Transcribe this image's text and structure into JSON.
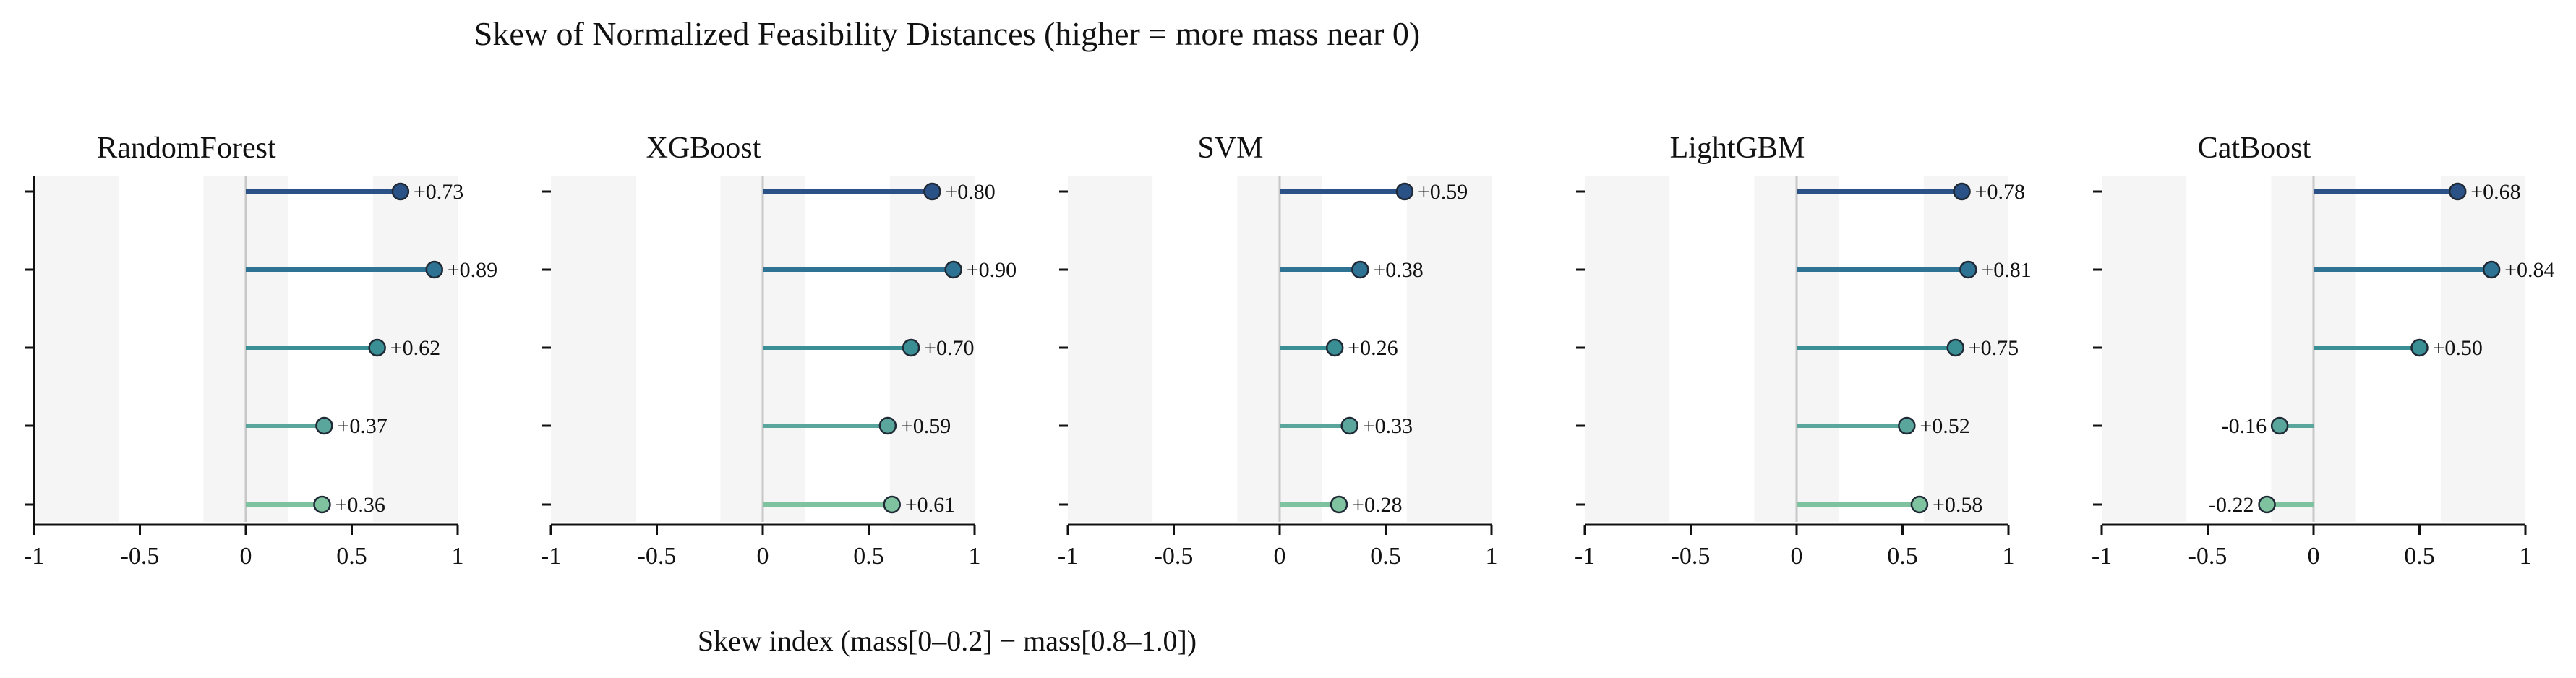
{
  "figure": {
    "title": "Skew of Normalized Feasibility Distances (higher = more mass near 0)",
    "xlabel": "Skew index  (mass[0–0.2] − mass[0.8–1.0])"
  },
  "chart_data": [
    {
      "type": "lollipop",
      "title": "RandomForest",
      "xlim": [
        -1,
        1
      ],
      "xticks": [
        "-1",
        "-0.5",
        "0",
        "0.5",
        "1"
      ],
      "values": [
        0.73,
        0.89,
        0.62,
        0.37,
        0.36
      ],
      "labels": [
        "+0.73",
        "+0.89",
        "+0.62",
        "+0.37",
        "+0.36"
      ]
    },
    {
      "type": "lollipop",
      "title": "XGBoost",
      "xlim": [
        -1,
        1
      ],
      "xticks": [
        "-1",
        "-0.5",
        "0",
        "0.5",
        "1"
      ],
      "values": [
        0.8,
        0.9,
        0.7,
        0.59,
        0.61
      ],
      "labels": [
        "+0.80",
        "+0.90",
        "+0.70",
        "+0.59",
        "+0.61"
      ]
    },
    {
      "type": "lollipop",
      "title": "SVM",
      "xlim": [
        -1,
        1
      ],
      "xticks": [
        "-1",
        "-0.5",
        "0",
        "0.5",
        "1"
      ],
      "values": [
        0.59,
        0.38,
        0.26,
        0.33,
        0.28
      ],
      "labels": [
        "+0.59",
        "+0.38",
        "+0.26",
        "+0.33",
        "+0.28"
      ]
    },
    {
      "type": "lollipop",
      "title": "LightGBM",
      "xlim": [
        -1,
        1
      ],
      "xticks": [
        "-1",
        "-0.5",
        "0",
        "0.5",
        "1"
      ],
      "values": [
        0.78,
        0.81,
        0.75,
        0.52,
        0.58
      ],
      "labels": [
        "+0.78",
        "+0.81",
        "+0.75",
        "+0.52",
        "+0.58"
      ]
    },
    {
      "type": "lollipop",
      "title": "CatBoost",
      "xlim": [
        -1,
        1
      ],
      "xticks": [
        "-1",
        "-0.5",
        "0",
        "0.5",
        "1"
      ],
      "values": [
        0.68,
        0.84,
        0.5,
        -0.16,
        -0.22
      ],
      "labels": [
        "+0.68",
        "+0.84",
        "+0.50",
        "-0.16",
        "-0.22"
      ]
    }
  ],
  "style": {
    "row_colors": [
      "#2b5286",
      "#2e7393",
      "#3a8f95",
      "#5aa59c",
      "#7fc29f"
    ],
    "background_bands": [
      [
        -1,
        -0.6
      ],
      [
        -0.2,
        0.2
      ],
      [
        0.6,
        1
      ]
    ],
    "band_color": "#f5f5f5",
    "zero_line_color": "#c8c8c8",
    "marker_edge_color": "#1f2a36"
  }
}
